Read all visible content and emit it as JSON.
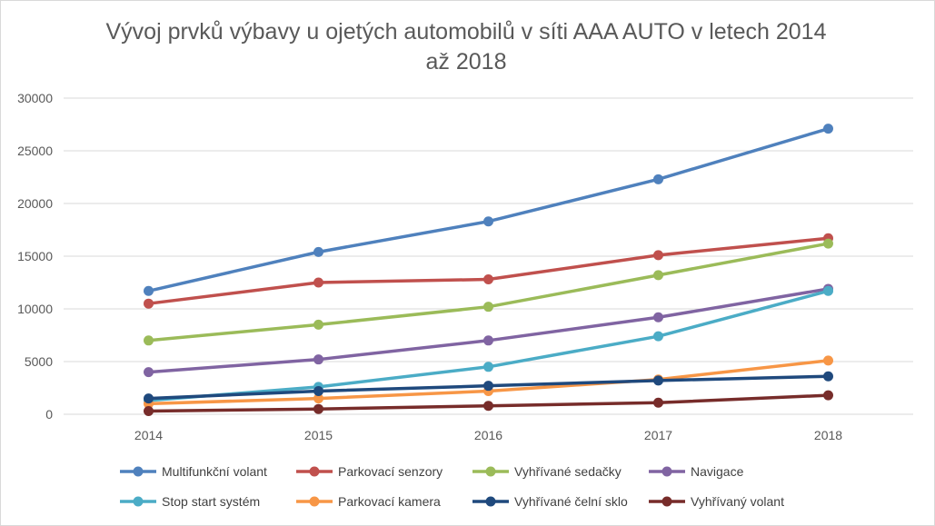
{
  "chart_data": {
    "type": "line",
    "title": "Vývoj prvků výbavy u ojetých automobilů v síti AAA AUTO v letech 2014 až 2018",
    "title_lines": [
      "Vývoj prvků výbavy u ojetých automobilů v síti AAA AUTO v letech 2014",
      "až 2018"
    ],
    "xlabel": "",
    "ylabel": "",
    "x": [
      "2014",
      "2015",
      "2016",
      "2017",
      "2018"
    ],
    "ylim": [
      0,
      30000
    ],
    "yticks": [
      "0",
      "5000",
      "10000",
      "15000",
      "20000",
      "25000",
      "30000"
    ],
    "grid": true,
    "legend_position": "bottom",
    "series": [
      {
        "name": "Multifunkční volant",
        "color": "#4f81bd",
        "values": [
          11700,
          15400,
          18300,
          22300,
          27100
        ]
      },
      {
        "name": "Parkovací senzory",
        "color": "#c0504d",
        "values": [
          10500,
          12500,
          12800,
          15100,
          16700
        ]
      },
      {
        "name": "Vyhřívané sedačky",
        "color": "#9bbb59",
        "values": [
          7000,
          8500,
          10200,
          13200,
          16200
        ]
      },
      {
        "name": "Navigace",
        "color": "#8064a2",
        "values": [
          4000,
          5200,
          7000,
          9200,
          11900
        ]
      },
      {
        "name": "Stop start systém",
        "color": "#4bacc6",
        "values": [
          1300,
          2600,
          4500,
          7400,
          11700
        ]
      },
      {
        "name": "Parkovací kamera",
        "color": "#f79646",
        "values": [
          1000,
          1500,
          2200,
          3300,
          5100
        ]
      },
      {
        "name": "Vyhřívané čelní sklo",
        "color": "#1f497d",
        "values": [
          1500,
          2200,
          2700,
          3200,
          3600
        ]
      },
      {
        "name": "Vyhřívaný volant",
        "color": "#772c2a",
        "values": [
          300,
          500,
          800,
          1100,
          1800
        ]
      }
    ]
  }
}
